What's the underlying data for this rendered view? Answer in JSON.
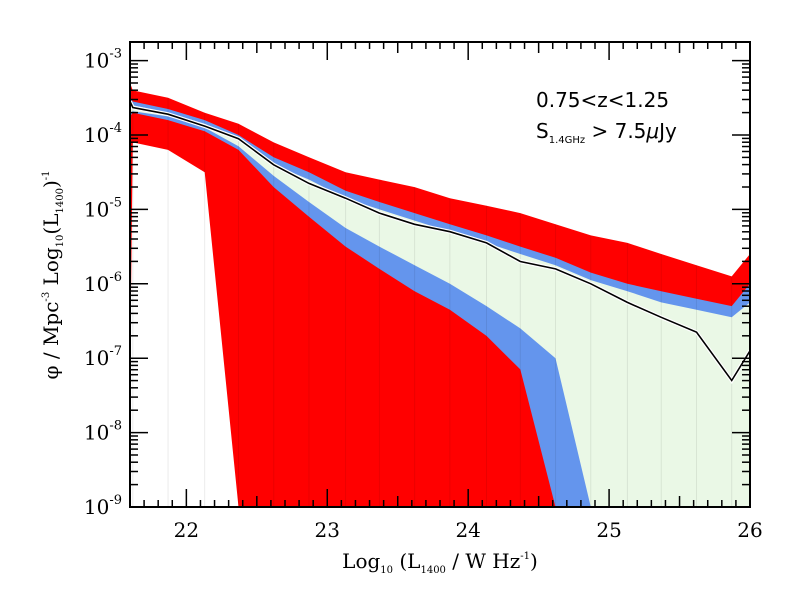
{
  "chart_data": {
    "type": "area",
    "x": [
      21.6,
      21.62,
      21.87,
      22.13,
      22.37,
      22.62,
      22.87,
      23.13,
      23.37,
      23.62,
      23.87,
      24.13,
      24.37,
      24.62,
      24.87,
      25.13,
      25.37,
      25.62,
      25.87,
      26.0
    ],
    "y_scale": "log",
    "xlim": [
      21.6,
      26.0
    ],
    "ylim_log10": [
      -9,
      -2.75
    ],
    "xlabel": {
      "main": "Log",
      "sub": "10",
      "mid": " (L",
      "sub2": "1400",
      "end": " / W Hz",
      "sup": "-1",
      "close": ")"
    },
    "ylabel": {
      "main": "φ  /  Mpc",
      "sup": "-3",
      "mid": " Log",
      "sub": "10",
      "mid2": "(L",
      "sub2": "1400",
      "close": ")",
      "sup2": "-1"
    },
    "x_ticks": [
      "22",
      "23",
      "24",
      "25",
      "26"
    ],
    "y_ticks": [
      {
        "base": "10",
        "exp": "-9",
        "log": -9
      },
      {
        "base": "10",
        "exp": "-8",
        "log": -8
      },
      {
        "base": "10",
        "exp": "-7",
        "log": -7
      },
      {
        "base": "10",
        "exp": "-6",
        "log": -6
      },
      {
        "base": "10",
        "exp": "-5",
        "log": -5
      },
      {
        "base": "10",
        "exp": "-4",
        "log": -4
      },
      {
        "base": "10",
        "exp": "-3",
        "log": -3
      }
    ],
    "annotation": {
      "line1": "0.75<z<1.25",
      "s_main": "S",
      "s_sub": "1.4GHz",
      "s_rest": " > 7.5",
      "mu": "μ",
      "unit": "Jy"
    },
    "bands": [
      {
        "role": "outer (3σ)",
        "color": "#ff0000",
        "upper_log": [
          -3.3,
          -3.4,
          -3.5,
          -3.7,
          -3.85,
          -4.1,
          -4.3,
          -4.5,
          -4.6,
          -4.7,
          -4.85,
          -4.95,
          -5.05,
          -5.2,
          -5.35,
          -5.45,
          -5.6,
          -5.75,
          -5.9,
          -5.6
        ],
        "lower_log": [
          -7.3,
          -4.1,
          -4.2,
          -4.5,
          -9.0,
          -9.0,
          -9.0,
          -9.0,
          -9.0,
          -9.0,
          -9.0,
          -9.0,
          -9.0,
          -9.0,
          -9.0,
          -9.0,
          -9.0,
          -9.0,
          -9.0,
          -9.0
        ]
      },
      {
        "role": "middle (2σ)",
        "color": "#6495ed",
        "upper_log": [
          -3.5,
          -3.55,
          -3.65,
          -3.8,
          -4.0,
          -4.3,
          -4.5,
          -4.75,
          -4.9,
          -5.05,
          -5.2,
          -5.35,
          -5.5,
          -5.65,
          -5.85,
          -6.0,
          -6.1,
          -6.2,
          -6.3,
          -6.0
        ],
        "lower_log": [
          -3.75,
          -3.7,
          -3.8,
          -3.95,
          -4.2,
          -4.7,
          -5.1,
          -5.5,
          -5.8,
          -6.1,
          -6.35,
          -6.7,
          -7.15,
          -9.0,
          -9.0,
          -9.0,
          -9.0,
          -9.0,
          -9.0,
          -9.0
        ]
      },
      {
        "role": "inner (1σ)",
        "color": "#eaf8e6",
        "upper_log": [
          -3.55,
          -3.6,
          -3.7,
          -3.85,
          -4.05,
          -4.4,
          -4.6,
          -4.85,
          -5.0,
          -5.15,
          -5.3,
          -5.45,
          -5.6,
          -5.75,
          -5.95,
          -6.1,
          -6.25,
          -6.35,
          -6.45,
          -6.25
        ],
        "lower_log": [
          -3.7,
          -3.68,
          -3.75,
          -3.9,
          -4.15,
          -4.55,
          -4.9,
          -5.25,
          -5.5,
          -5.75,
          -6.0,
          -6.3,
          -6.6,
          -7.0,
          -9.0,
          -9.0,
          -9.0,
          -9.0,
          -9.0,
          -9.0
        ]
      }
    ],
    "median": {
      "color": "#000000",
      "log": [
        -3.55,
        -3.63,
        -3.72,
        -3.88,
        -4.05,
        -4.4,
        -4.65,
        -4.85,
        -5.05,
        -5.2,
        -5.3,
        -5.45,
        -5.7,
        -5.8,
        -6.0,
        -6.25,
        -6.45,
        -6.65,
        -7.3,
        -6.9
      ]
    }
  }
}
